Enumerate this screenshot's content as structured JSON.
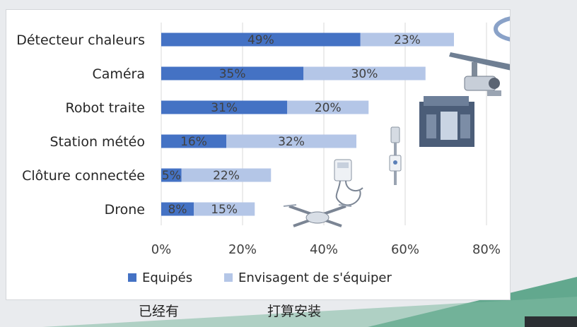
{
  "chart_data": {
    "type": "bar",
    "orientation": "horizontal",
    "stacked": true,
    "categories": [
      "Détecteur chaleurs",
      "Caméra",
      "Robot traite",
      "Station météo",
      "Clôture connectée",
      "Drone"
    ],
    "series": [
      {
        "name": "Equipés",
        "values": [
          49,
          35,
          31,
          16,
          5,
          8
        ],
        "labels": [
          "49%",
          "35%",
          "31%",
          "16%",
          "5%",
          "8%"
        ],
        "color": "#4472c4"
      },
      {
        "name": "Envisagent de s'équiper",
        "values": [
          23,
          30,
          20,
          32,
          22,
          15
        ],
        "labels": [
          "23%",
          "30%",
          "20%",
          "32%",
          "22%",
          "15%"
        ],
        "color": "#b4c6e7"
      }
    ],
    "xlim": [
      0,
      80
    ],
    "xticks": [
      "0%",
      "20%",
      "40%",
      "60%",
      "80%"
    ],
    "grid": true,
    "legend": "bottom"
  },
  "icons": [
    "heat-detector-collar-icon",
    "camera-icon",
    "milking-robot-icon",
    "weather-station-icon",
    "fence-energizer-icon",
    "drone-icon"
  ],
  "captions": {
    "left": "已经有",
    "right": "打算安装"
  },
  "colors": {
    "accent_green": "#2e8b6d",
    "accent_dark": "#1d5e4a"
  }
}
